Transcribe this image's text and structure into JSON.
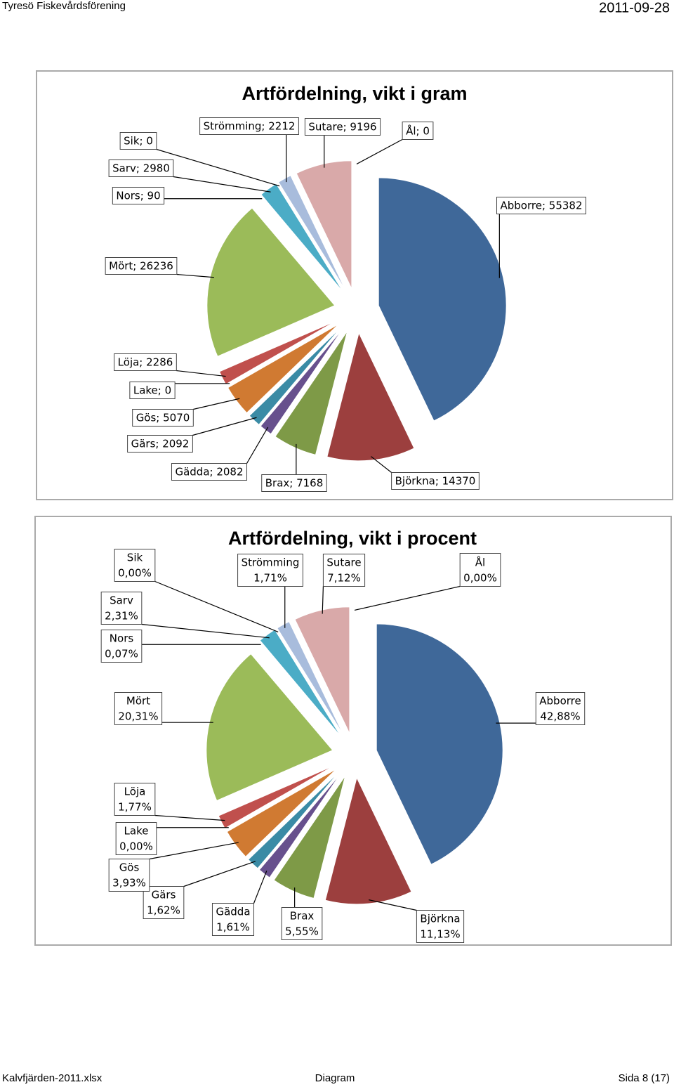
{
  "header": {
    "left": "Tyresö Fiskevårdsförening",
    "right": "2011-09-28"
  },
  "footer": {
    "left": "Kalvfjärden-2011.xlsx",
    "center": "Diagram",
    "right": "Sida 8 (17)"
  },
  "chart_data": [
    {
      "type": "pie",
      "title": "Artfördelning, vikt i gram",
      "values": [
        55382,
        14370,
        7168,
        2082,
        2092,
        5070,
        0,
        2286,
        26236,
        90,
        2980,
        0,
        2212,
        9196,
        0
      ],
      "value_labels": [
        "Abborre; 55382",
        "Björkna; 14370",
        "Brax; 7168",
        "Gädda; 2082",
        "Gärs; 2092",
        "Gös; 5070",
        "Lake; 0",
        "Löja; 2286",
        "Mört; 26236",
        "Nors; 90",
        "Sarv; 2980",
        "Sik; 0",
        "Strömming; 2212",
        "Sutare; 9196",
        "Ål; 0"
      ],
      "colors": [
        "#3f6899",
        "#9c3f3e",
        "#7e9a47",
        "#67508d",
        "#3a8ba5",
        "#d07a32",
        "#c4bd97",
        "#c0504d",
        "#9bbb59",
        "#8064a2",
        "#4bacc6",
        "#f79646",
        "#a8bcdc",
        "#d9a9a9",
        "#b8cce4"
      ]
    },
    {
      "type": "pie",
      "title": "Artfördelning, vikt i procent",
      "categories": [
        "Abborre",
        "Björkna",
        "Brax",
        "Gädda",
        "Gärs",
        "Gös",
        "Lake",
        "Löja",
        "Mört",
        "Nors",
        "Sarv",
        "Sik",
        "Strömming",
        "Sutare",
        "Ål"
      ],
      "values": [
        42.88,
        11.13,
        5.55,
        1.61,
        1.62,
        3.93,
        0,
        1.77,
        20.31,
        0.07,
        2.31,
        0,
        1.71,
        7.12,
        0
      ],
      "value_labels": [
        "42,88%",
        "11,13%",
        "5,55%",
        "1,61%",
        "1,62%",
        "3,93%",
        "0,00%",
        "1,77%",
        "20,31%",
        "0,07%",
        "2,31%",
        "0,00%",
        "1,71%",
        "7,12%",
        "0,00%"
      ],
      "colors": [
        "#3f6899",
        "#9c3f3e",
        "#7e9a47",
        "#67508d",
        "#3a8ba5",
        "#d07a32",
        "#c4bd97",
        "#c0504d",
        "#9bbb59",
        "#8064a2",
        "#4bacc6",
        "#f79646",
        "#a8bcdc",
        "#d9a9a9",
        "#b8cce4"
      ]
    }
  ]
}
